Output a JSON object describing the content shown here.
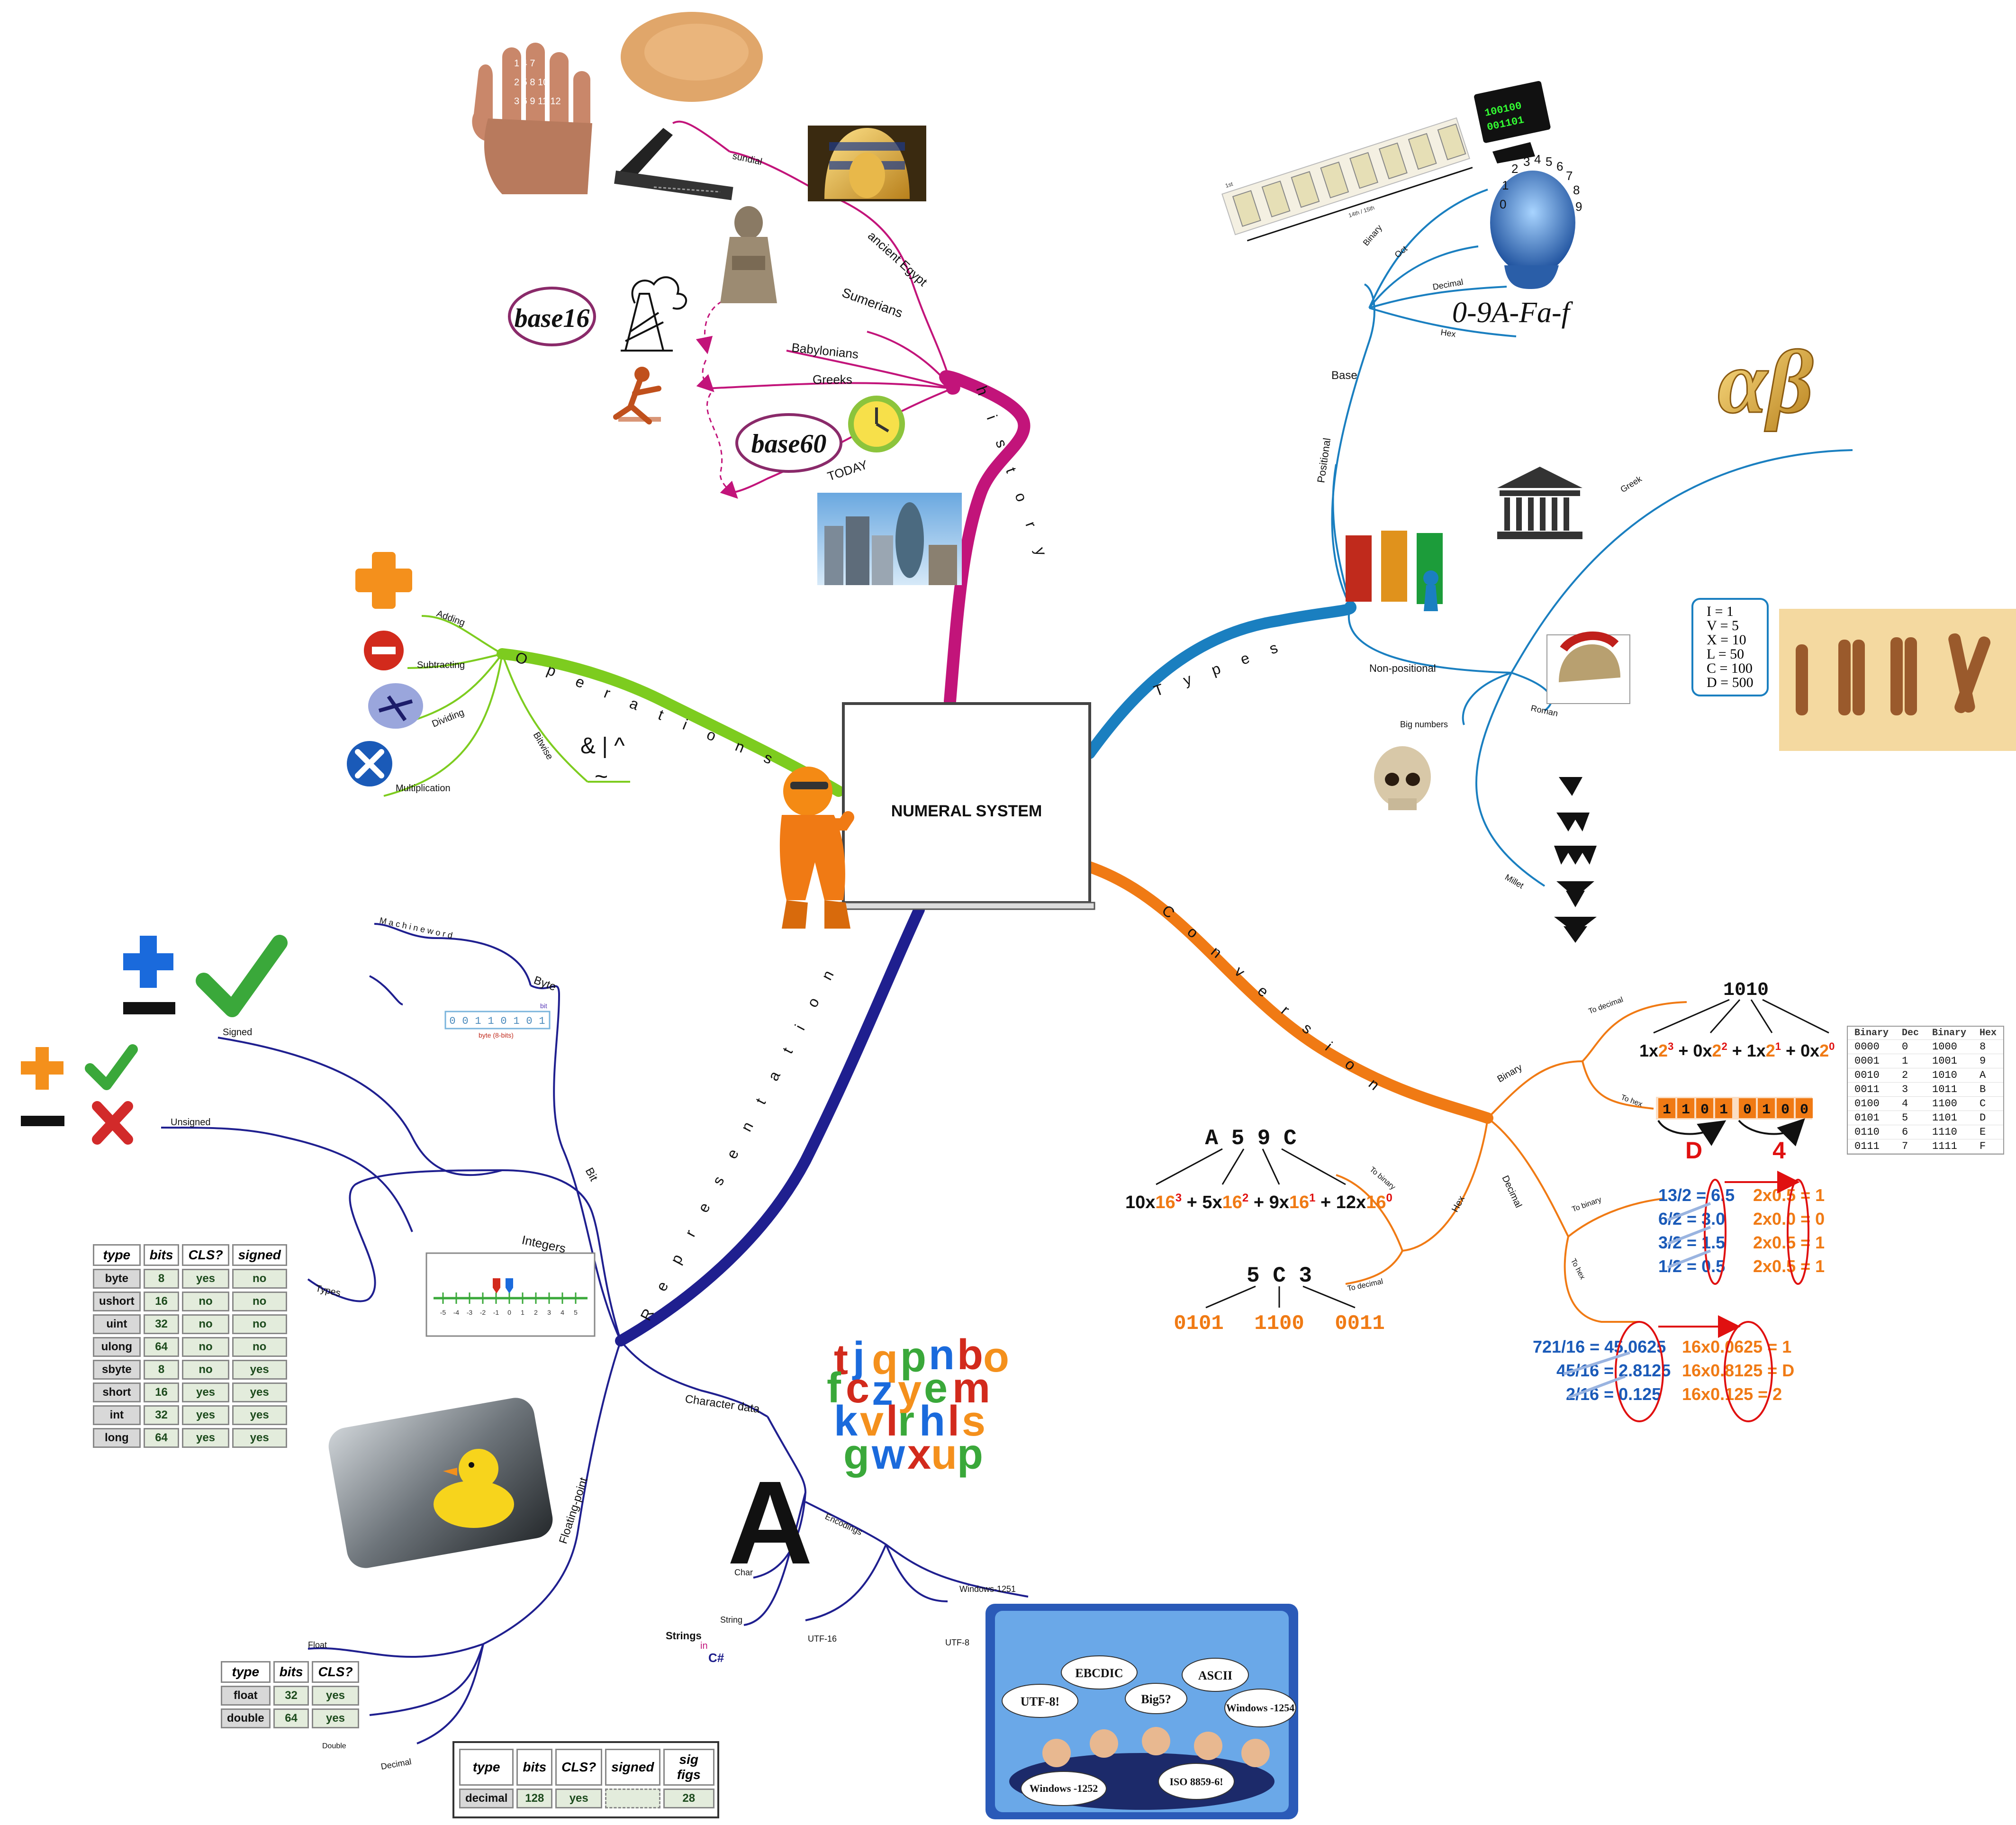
{
  "center": {
    "title": "NUMERAL SYSTEM"
  },
  "colors": {
    "history": "#c2147a",
    "types": "#1a7fc0",
    "operations": "#7dcc1f",
    "conversion": "#f07a14",
    "representation": "#1f1f8f"
  },
  "history": {
    "label": "h i s t o r y",
    "items": [
      "sundial",
      "ancient Egypt",
      "Sumerians",
      "Babylonians",
      "Greeks",
      "TODAY"
    ],
    "badges": [
      "base16",
      "base60"
    ]
  },
  "types": {
    "label": "T y p e s",
    "base_label": "Base",
    "positional_label": "Positional",
    "positional_items": [
      "Binary",
      "Oct",
      "Decimal",
      "Hex"
    ],
    "hex_digits": "0-9A-Fa-f",
    "non_positional_label": "Non-positional",
    "non_positional_items": [
      "Greek",
      "Roman",
      "Big numbers",
      "Millet"
    ],
    "greek_letters": "αβ",
    "roman": [
      "I = 1",
      "V = 5",
      "X = 10",
      "L = 50",
      "C = 100",
      "D = 500"
    ],
    "binary_screen": [
      "100100",
      "001101"
    ],
    "clock_digits": [
      "0",
      "1",
      "2",
      "3",
      "4",
      "5",
      "6",
      "7",
      "8",
      "9"
    ],
    "switch_labels": [
      "1st",
      "14th / 15th"
    ]
  },
  "operations": {
    "label": "O p e r a t i o n s",
    "items": [
      "Adding",
      "Subtracting",
      "Dividing",
      "Multiplication",
      "Bitwise"
    ],
    "bitwise_symbols": [
      "& | ^",
      "~"
    ]
  },
  "conversion": {
    "label": "C o n v e r s i o n",
    "binary_label": "Binary",
    "hex_label": "Hex",
    "decimal_label": "Decimal",
    "to_decimal": "To decimal",
    "to_hex": "To hex",
    "to_binary": "To binary",
    "binary_number": "1010",
    "binary_digits_nibble1": [
      "1",
      "1",
      "0",
      "1"
    ],
    "binary_digits_nibble2": [
      "0",
      "1",
      "0",
      "0"
    ],
    "hex_result": [
      "D",
      "4"
    ],
    "hex_number": "A 5 9 C",
    "hex_number2": "5 C 3",
    "hex_bits": [
      "0101",
      "1100",
      "0011"
    ],
    "dec_to_bin_left": [
      "13/2 = 6.5",
      "6/2 = 3.0",
      "3/2 = 1.5",
      "1/2 = 0.5"
    ],
    "dec_to_bin_right": [
      "2x0.5 = 1",
      "2x0.0 = 0",
      "2x0.5 = 1",
      "2x0.5 = 1"
    ],
    "dec_to_hex_left": [
      "721/16 = 45.0625",
      "45/16 = 2.8125",
      "2/16 = 0.125"
    ],
    "dec_to_hex_right": [
      "16x0.0625 = 1",
      "16x0.8125 = D",
      "16x0.125 = 2"
    ],
    "ref_table": {
      "headers": [
        "Binary",
        "Dec",
        "Binary",
        "Hex"
      ],
      "rows": [
        [
          "0000",
          "0",
          "1000",
          "8"
        ],
        [
          "0001",
          "1",
          "1001",
          "9"
        ],
        [
          "0010",
          "2",
          "1010",
          "A"
        ],
        [
          "0011",
          "3",
          "1011",
          "B"
        ],
        [
          "0100",
          "4",
          "1100",
          "C"
        ],
        [
          "0101",
          "5",
          "1101",
          "D"
        ],
        [
          "0110",
          "6",
          "1110",
          "E"
        ],
        [
          "0111",
          "7",
          "1111",
          "F"
        ]
      ]
    }
  },
  "representation": {
    "label": "R e p r e s e n t a t i o n",
    "machine_word": "M a c h i n e  w o r d",
    "byte": "Byte",
    "bit_caption": "bit",
    "byte_caption": "byte (8-bits)",
    "byte_bits": [
      "0",
      "0",
      "1",
      "1",
      "0",
      "1",
      "0",
      "1"
    ],
    "bit": "Bit",
    "integers": "Integers",
    "signed": "Signed",
    "unsigned": "Unsigned",
    "types": "Types",
    "numberline": [
      "-5",
      "-4",
      "-3",
      "-2",
      "-1",
      "0",
      "1",
      "2",
      "3",
      "4",
      "5"
    ],
    "int_table": {
      "headers": [
        "type",
        "bits",
        "CLS?",
        "signed"
      ],
      "rows_unsigned": [
        [
          "byte",
          "8",
          "yes",
          "no"
        ],
        [
          "ushort",
          "16",
          "no",
          "no"
        ],
        [
          "uint",
          "32",
          "no",
          "no"
        ],
        [
          "ulong",
          "64",
          "no",
          "no"
        ]
      ],
      "rows_signed": [
        [
          "sbyte",
          "8",
          "no",
          "yes"
        ],
        [
          "short",
          "16",
          "yes",
          "yes"
        ],
        [
          "int",
          "32",
          "yes",
          "yes"
        ],
        [
          "long",
          "64",
          "yes",
          "yes"
        ]
      ]
    },
    "floating_point": "Floating-point",
    "float": "Float",
    "double": "Double",
    "decimal": "Decimal",
    "float_table": {
      "headers": [
        "type",
        "bits",
        "CLS?"
      ],
      "rows": [
        [
          "float",
          "32",
          "yes"
        ],
        [
          "double",
          "64",
          "yes"
        ]
      ]
    },
    "decimal_table": {
      "headers": [
        "type",
        "bits",
        "CLS?",
        "signed",
        "sig figs"
      ],
      "rows": [
        [
          "decimal",
          "128",
          "yes",
          "",
          "28"
        ]
      ]
    },
    "character_data": "Character data",
    "char": "Char",
    "string": "String",
    "encodings": "Encodings",
    "encoding_items": [
      "Windows-1251",
      "UTF-16",
      "UTF-8"
    ],
    "strings_caption": [
      "Strings",
      "in",
      "C#"
    ],
    "letter_a": "A",
    "letters": "tjqpnbo fczyem kvlrhls gwxup",
    "bubbles": [
      "UTF-8!",
      "EBCDIC",
      "Big5?",
      "ASCII",
      "Windows -1254",
      "Windows -1252",
      "ISO 8859-6!"
    ]
  }
}
